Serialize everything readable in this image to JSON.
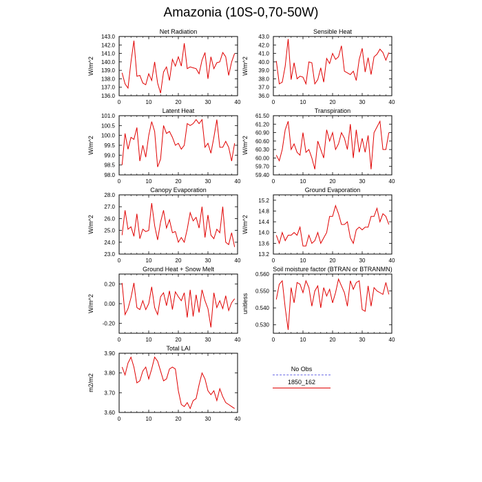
{
  "page": {
    "title": "Amazonia (10S-0,70-50W)"
  },
  "legend": {
    "entries": [
      {
        "label": "No Obs",
        "color": "#6a6ae6"
      },
      {
        "label": "1850_162",
        "color": "#e00000"
      }
    ]
  },
  "chart_data": [
    {
      "type": "line",
      "title": "Net Radiation",
      "ylabel": "W/m^2",
      "xlim": [
        0,
        40
      ],
      "ylim": [
        136.0,
        143.0
      ],
      "xticks": [
        "0",
        "10",
        "20",
        "30",
        "40"
      ],
      "yticks": [
        "136.0",
        "137.0",
        "138.0",
        "139.0",
        "140.0",
        "141.0",
        "142.0",
        "143.0"
      ],
      "series": [
        {
          "name": "1850_162",
          "color": "#e00000",
          "x": [
            1,
            2,
            3,
            4,
            5,
            6,
            7,
            8,
            9,
            10,
            11,
            12,
            13,
            14,
            15,
            16,
            17,
            18,
            19,
            20,
            21,
            22,
            23,
            24,
            25,
            26,
            27,
            28,
            29,
            30,
            31,
            32,
            33,
            34,
            35,
            36,
            37,
            38,
            39
          ],
          "values": [
            138.7,
            137.4,
            136.9,
            140.0,
            142.5,
            138.3,
            138.4,
            137.5,
            137.3,
            138.6,
            137.8,
            140.0,
            137.5,
            136.3,
            138.8,
            139.4,
            137.8,
            140.3,
            139.5,
            140.6,
            139.5,
            142.2,
            139.2,
            139.4,
            139.3,
            139.2,
            138.6,
            140.2,
            141.1,
            138.0,
            140.6,
            139.2,
            139.9,
            140.0,
            141.1,
            140.6,
            138.4,
            140.0,
            141.0
          ]
        }
      ]
    },
    {
      "type": "line",
      "title": "Sensible Heat",
      "ylabel": "W/m^2",
      "xlim": [
        0,
        40
      ],
      "ylim": [
        36.0,
        43.0
      ],
      "xticks": [
        "0",
        "10",
        "20",
        "30",
        "40"
      ],
      "yticks": [
        "36.0",
        "37.0",
        "38.0",
        "39.0",
        "40.0",
        "41.0",
        "42.0",
        "43.0"
      ],
      "series": [
        {
          "name": "1850_162",
          "color": "#e00000",
          "x": [
            1,
            2,
            3,
            4,
            5,
            6,
            7,
            8,
            9,
            10,
            11,
            12,
            13,
            14,
            15,
            16,
            17,
            18,
            19,
            20,
            21,
            22,
            23,
            24,
            25,
            26,
            27,
            28,
            29,
            30,
            31,
            32,
            33,
            34,
            35,
            36,
            37,
            38,
            39
          ],
          "values": [
            40.1,
            37.4,
            37.6,
            39.5,
            42.7,
            37.9,
            39.9,
            38.0,
            38.3,
            38.2,
            37.4,
            40.0,
            39.9,
            37.4,
            37.9,
            39.3,
            37.6,
            40.4,
            39.8,
            41.0,
            40.3,
            40.6,
            41.9,
            38.9,
            38.7,
            38.5,
            38.9,
            37.8,
            40.3,
            41.6,
            38.8,
            40.5,
            38.5,
            40.6,
            40.9,
            41.5,
            41.1,
            40.2,
            41.1
          ]
        }
      ]
    },
    {
      "type": "line",
      "title": "Latent Heat",
      "ylabel": "W/m^2",
      "xlim": [
        0,
        40
      ],
      "ylim": [
        98.0,
        101.0
      ],
      "xticks": [
        "0",
        "10",
        "20",
        "30",
        "40"
      ],
      "yticks": [
        "98.0",
        "98.5",
        "99.0",
        "99.5",
        "100.0",
        "100.5",
        "101.0"
      ],
      "series": [
        {
          "name": "1850_162",
          "color": "#e00000",
          "x": [
            1,
            2,
            3,
            4,
            5,
            6,
            7,
            8,
            9,
            10,
            11,
            12,
            13,
            14,
            15,
            16,
            17,
            18,
            19,
            20,
            21,
            22,
            23,
            24,
            25,
            26,
            27,
            28,
            29,
            30,
            31,
            32,
            33,
            34,
            35,
            36,
            37,
            38,
            39
          ],
          "values": [
            98.5,
            100.1,
            99.3,
            99.9,
            99.8,
            100.4,
            98.7,
            99.5,
            98.9,
            100.0,
            100.7,
            100.2,
            98.4,
            98.8,
            100.5,
            100.1,
            100.2,
            99.9,
            99.5,
            99.6,
            99.3,
            99.5,
            100.6,
            100.5,
            100.6,
            100.8,
            100.6,
            100.8,
            99.4,
            99.6,
            99.1,
            99.9,
            100.8,
            99.4,
            99.4,
            99.7,
            99.4,
            98.7,
            99.6
          ]
        }
      ]
    },
    {
      "type": "line",
      "title": "Transpiration",
      "ylabel": "W/m^2",
      "xlim": [
        0,
        40
      ],
      "ylim": [
        59.4,
        61.5
      ],
      "xticks": [
        "0",
        "10",
        "20",
        "30",
        "40"
      ],
      "yticks": [
        "59.40",
        "59.70",
        "60.00",
        "60.30",
        "60.60",
        "60.90",
        "61.20",
        "61.50"
      ],
      "series": [
        {
          "name": "1850_162",
          "color": "#e00000",
          "x": [
            1,
            2,
            3,
            4,
            5,
            6,
            7,
            8,
            9,
            10,
            11,
            12,
            13,
            14,
            15,
            16,
            17,
            18,
            19,
            20,
            21,
            22,
            23,
            24,
            25,
            26,
            27,
            28,
            29,
            30,
            31,
            32,
            33,
            34,
            35,
            36,
            37,
            38,
            39
          ],
          "values": [
            60.1,
            59.9,
            60.3,
            61.0,
            61.3,
            60.3,
            60.5,
            60.2,
            60.1,
            60.9,
            60.2,
            60.3,
            60.0,
            59.6,
            60.6,
            60.3,
            60.0,
            61.0,
            60.6,
            60.9,
            60.3,
            60.5,
            60.9,
            60.7,
            60.3,
            61.2,
            60.0,
            61.0,
            60.2,
            60.7,
            60.2,
            60.8,
            59.6,
            60.9,
            61.1,
            61.3,
            60.3,
            60.3,
            60.9
          ]
        }
      ]
    },
    {
      "type": "line",
      "title": "Canopy Evaporation",
      "ylabel": "W/m^2",
      "xlim": [
        0,
        40
      ],
      "ylim": [
        23.0,
        28.0
      ],
      "xticks": [
        "0",
        "10",
        "20",
        "30",
        "40"
      ],
      "yticks": [
        "23.0",
        "24.0",
        "25.0",
        "26.0",
        "27.0",
        "28.0"
      ],
      "series": [
        {
          "name": "1850_162",
          "color": "#e00000",
          "x": [
            1,
            2,
            3,
            4,
            5,
            6,
            7,
            8,
            9,
            10,
            11,
            12,
            13,
            14,
            15,
            16,
            17,
            18,
            19,
            20,
            21,
            22,
            23,
            24,
            25,
            26,
            27,
            28,
            29,
            30,
            31,
            32,
            33,
            34,
            35,
            36,
            37,
            38,
            39
          ],
          "values": [
            24.6,
            26.7,
            25.1,
            25.3,
            24.5,
            26.4,
            24.3,
            25.1,
            24.9,
            25.0,
            27.3,
            25.4,
            24.2,
            25.7,
            26.7,
            25.2,
            25.9,
            24.8,
            24.9,
            24.0,
            24.4,
            24.0,
            25.1,
            26.5,
            25.8,
            26.1,
            25.2,
            27.0,
            24.4,
            26.3,
            24.6,
            24.3,
            25.1,
            24.8,
            27.0,
            24.0,
            23.8,
            24.8,
            23.6
          ]
        }
      ]
    },
    {
      "type": "line",
      "title": "Ground Evaporation",
      "ylabel": "W/m^2",
      "xlim": [
        0,
        40
      ],
      "ylim": [
        13.2,
        15.4
      ],
      "xticks": [
        "0",
        "10",
        "20",
        "30",
        "40"
      ],
      "yticks": [
        "13.2",
        "13.6",
        "14.0",
        "14.4",
        "14.8",
        "15.2"
      ],
      "series": [
        {
          "name": "1850_162",
          "color": "#e00000",
          "x": [
            1,
            2,
            3,
            4,
            5,
            6,
            7,
            8,
            9,
            10,
            11,
            12,
            13,
            14,
            15,
            16,
            17,
            18,
            19,
            20,
            21,
            22,
            23,
            24,
            25,
            26,
            27,
            28,
            29,
            30,
            31,
            32,
            33,
            34,
            35,
            36,
            37,
            38,
            39
          ],
          "values": [
            13.9,
            13.6,
            14.0,
            13.7,
            13.9,
            13.9,
            14.0,
            13.9,
            14.2,
            13.5,
            13.5,
            13.9,
            13.6,
            13.7,
            14.0,
            13.6,
            13.8,
            14.0,
            14.6,
            14.6,
            15.0,
            14.7,
            14.3,
            14.3,
            14.4,
            13.8,
            13.6,
            14.1,
            14.2,
            14.1,
            14.2,
            14.2,
            14.6,
            14.6,
            14.9,
            14.4,
            14.7,
            14.6,
            14.3
          ]
        }
      ]
    },
    {
      "type": "line",
      "title": "Ground Heat + Snow Melt",
      "ylabel": "W/m^2",
      "xlim": [
        0,
        40
      ],
      "ylim": [
        -0.3,
        0.3
      ],
      "xticks": [
        "0",
        "10",
        "20",
        "30",
        "40"
      ],
      "yticks": [
        "-0.20",
        "0.00",
        "0.20"
      ],
      "series": [
        {
          "name": "1850_162",
          "color": "#e00000",
          "x": [
            1,
            2,
            3,
            4,
            5,
            6,
            7,
            8,
            9,
            10,
            11,
            12,
            13,
            14,
            15,
            16,
            17,
            18,
            19,
            20,
            21,
            22,
            23,
            24,
            25,
            26,
            27,
            28,
            29,
            30,
            31,
            32,
            33,
            34,
            35,
            36,
            37,
            38,
            39
          ],
          "values": [
            0.21,
            -0.11,
            -0.05,
            0.06,
            0.21,
            -0.04,
            -0.06,
            0.03,
            -0.06,
            0.0,
            0.17,
            -0.04,
            -0.11,
            0.07,
            0.11,
            -0.02,
            0.13,
            -0.06,
            0.12,
            0.07,
            0.03,
            0.11,
            -0.14,
            0.14,
            -0.13,
            0.09,
            -0.09,
            0.14,
            0.03,
            -0.05,
            -0.24,
            0.11,
            -0.04,
            0.03,
            -0.05,
            0.08,
            -0.07,
            0.01,
            0.05
          ]
        }
      ]
    },
    {
      "type": "line",
      "title": "Soil moisture factor (BTRAN or BTRANMN)",
      "ylabel": "unitless",
      "xlim": [
        0,
        40
      ],
      "ylim": [
        0.525,
        0.56
      ],
      "xticks": [
        "0",
        "10",
        "20",
        "30",
        "40"
      ],
      "yticks": [
        "0.530",
        "0.540",
        "0.550",
        "0.560"
      ],
      "series": [
        {
          "name": "1850_162",
          "color": "#e00000",
          "x": [
            1,
            2,
            3,
            4,
            5,
            6,
            7,
            8,
            9,
            10,
            11,
            12,
            13,
            14,
            15,
            16,
            17,
            18,
            19,
            20,
            21,
            22,
            23,
            24,
            25,
            26,
            27,
            28,
            29,
            30,
            31,
            32,
            33,
            34,
            35,
            36,
            37,
            38,
            39
          ],
          "values": [
            0.545,
            0.554,
            0.556,
            0.54,
            0.527,
            0.552,
            0.543,
            0.555,
            0.554,
            0.549,
            0.556,
            0.552,
            0.541,
            0.55,
            0.553,
            0.54,
            0.552,
            0.547,
            0.551,
            0.543,
            0.549,
            0.557,
            0.553,
            0.549,
            0.541,
            0.556,
            0.551,
            0.555,
            0.556,
            0.539,
            0.538,
            0.553,
            0.541,
            0.552,
            0.55,
            0.549,
            0.548,
            0.555,
            0.548
          ]
        }
      ]
    },
    {
      "type": "line",
      "title": "Total LAI",
      "ylabel": "m2/m2",
      "xlim": [
        0,
        40
      ],
      "ylim": [
        3.6,
        3.9
      ],
      "xticks": [
        "0",
        "10",
        "20",
        "30",
        "40"
      ],
      "yticks": [
        "3.60",
        "3.70",
        "3.80",
        "3.90"
      ],
      "series": [
        {
          "name": "1850_162",
          "color": "#e00000",
          "x": [
            1,
            2,
            3,
            4,
            5,
            6,
            7,
            8,
            9,
            10,
            11,
            12,
            13,
            14,
            15,
            16,
            17,
            18,
            19,
            20,
            21,
            22,
            23,
            24,
            25,
            26,
            27,
            28,
            29,
            30,
            31,
            32,
            33,
            34,
            35,
            36,
            37,
            38,
            39
          ],
          "values": [
            3.83,
            3.79,
            3.85,
            3.88,
            3.83,
            3.75,
            3.76,
            3.81,
            3.83,
            3.77,
            3.82,
            3.88,
            3.86,
            3.81,
            3.76,
            3.77,
            3.82,
            3.83,
            3.82,
            3.71,
            3.64,
            3.63,
            3.65,
            3.62,
            3.66,
            3.67,
            3.74,
            3.8,
            3.77,
            3.71,
            3.69,
            3.71,
            3.66,
            3.72,
            3.68,
            3.65,
            3.64,
            3.63,
            3.62
          ]
        }
      ]
    }
  ]
}
